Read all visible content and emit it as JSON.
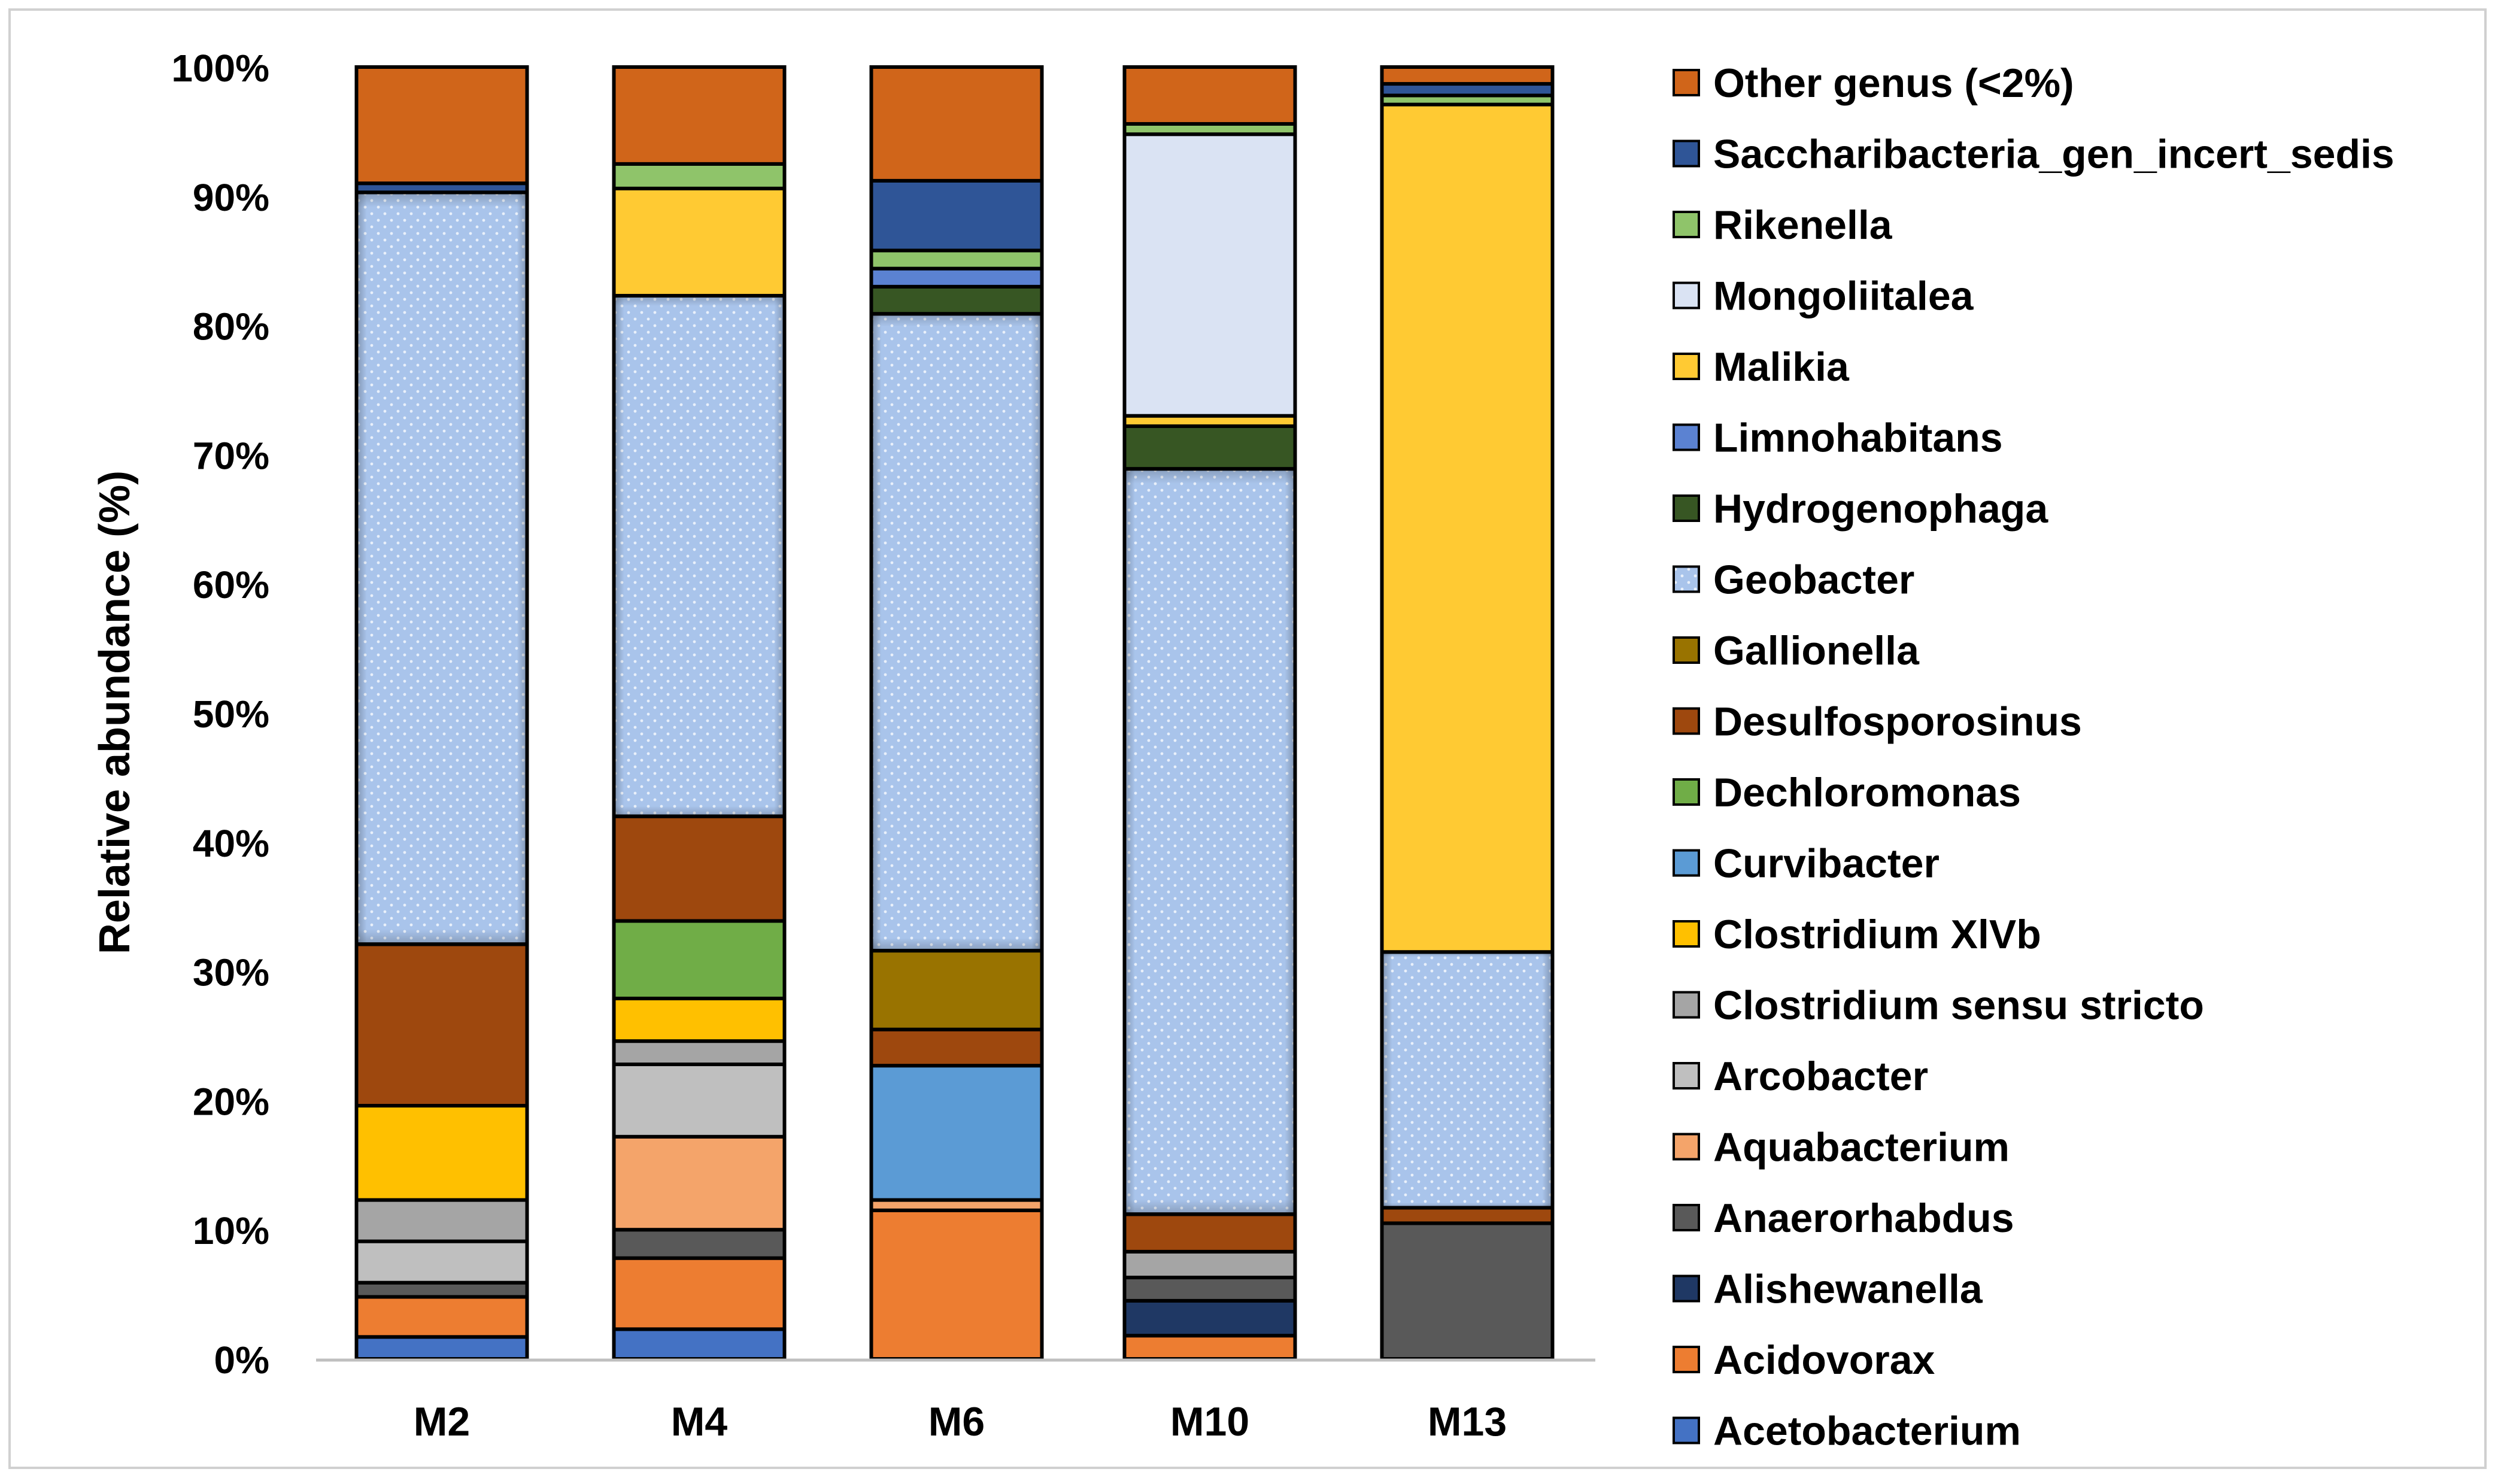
{
  "chart_data": {
    "type": "bar",
    "stacked": true,
    "normalized": true,
    "title": "",
    "xlabel": "",
    "ylabel": "Relative abundance (%)",
    "ylim": [
      0,
      100
    ],
    "yticks": [
      0,
      10,
      20,
      30,
      40,
      50,
      60,
      70,
      80,
      90,
      100
    ],
    "ytick_labels": [
      "0%",
      "10%",
      "20%",
      "30%",
      "40%",
      "50%",
      "60%",
      "70%",
      "80%",
      "90%",
      "100%"
    ],
    "legend_position": "right",
    "categories": [
      "M2",
      "M4",
      "M6",
      "M10",
      "M13"
    ],
    "series": [
      {
        "name": "Acetobacterium",
        "color": "#4472C4",
        "values": [
          1.7,
          2.3,
          0,
          0,
          0
        ]
      },
      {
        "name": "Acidovorax",
        "color": "#ED7D31",
        "values": [
          3.1,
          5.5,
          11.5,
          1.8,
          0
        ]
      },
      {
        "name": "Alishewanella",
        "color": "#1F3864",
        "values": [
          0,
          0,
          0,
          2.7,
          0
        ]
      },
      {
        "name": "Anaerorhabdus",
        "color": "#595959",
        "values": [
          1.1,
          2.2,
          0,
          1.8,
          10.5
        ]
      },
      {
        "name": "Aquabacterium",
        "color": "#F4A46A",
        "values": [
          0,
          7.2,
          0.8,
          0,
          0
        ]
      },
      {
        "name": "Arcobacter",
        "color": "#BFBFBF",
        "values": [
          3.2,
          5.6,
          0,
          0,
          0
        ]
      },
      {
        "name": "Clostridium sensu stricto",
        "color": "#A5A5A5",
        "values": [
          3.2,
          1.8,
          0,
          2.0,
          0
        ]
      },
      {
        "name": "Clostridium XlVb",
        "color": "#FFC000",
        "values": [
          7.3,
          3.3,
          0,
          0,
          0
        ]
      },
      {
        "name": "Curvibacter",
        "color": "#5B9BD5",
        "values": [
          0,
          0,
          10.4,
          0,
          0
        ]
      },
      {
        "name": "Dechloromonas",
        "color": "#70AD47",
        "values": [
          0,
          6.0,
          0,
          0,
          0
        ]
      },
      {
        "name": "Desulfosporosinus",
        "color": "#9E480E",
        "values": [
          12.5,
          8.1,
          2.8,
          2.9,
          1.2
        ]
      },
      {
        "name": "Gallionella",
        "color": "#997300",
        "values": [
          0,
          0,
          6.1,
          0,
          0
        ]
      },
      {
        "name": "Geobacter",
        "color": "#A9C4EB",
        "values": [
          58.2,
          40.3,
          49.3,
          57.7,
          19.8
        ]
      },
      {
        "name": "Hydrogenophaga",
        "color": "#375623",
        "values": [
          0,
          0,
          2.1,
          3.3,
          0
        ]
      },
      {
        "name": "Limnohabitans",
        "color": "#5B82D2",
        "values": [
          0,
          0,
          1.4,
          0,
          0
        ]
      },
      {
        "name": "Malikia",
        "color": "#FFCA33",
        "values": [
          0,
          8.3,
          0,
          0.8,
          65.6
        ]
      },
      {
        "name": "Mongoliitalea",
        "color": "#DAE3F3",
        "values": [
          0,
          0,
          0,
          21.8,
          0
        ]
      },
      {
        "name": "Rikenella",
        "color": "#8FC46A",
        "values": [
          0,
          1.9,
          1.4,
          0.8,
          0.7
        ]
      },
      {
        "name": "Saccharibacteria_gen_incert_sedis",
        "color": "#2F5597",
        "values": [
          0.7,
          0,
          5.4,
          0,
          0.9
        ]
      },
      {
        "name": "Other genus (<2%)",
        "color": "#D0651A",
        "values": [
          9.0,
          7.5,
          8.8,
          4.4,
          1.3
        ]
      }
    ]
  }
}
